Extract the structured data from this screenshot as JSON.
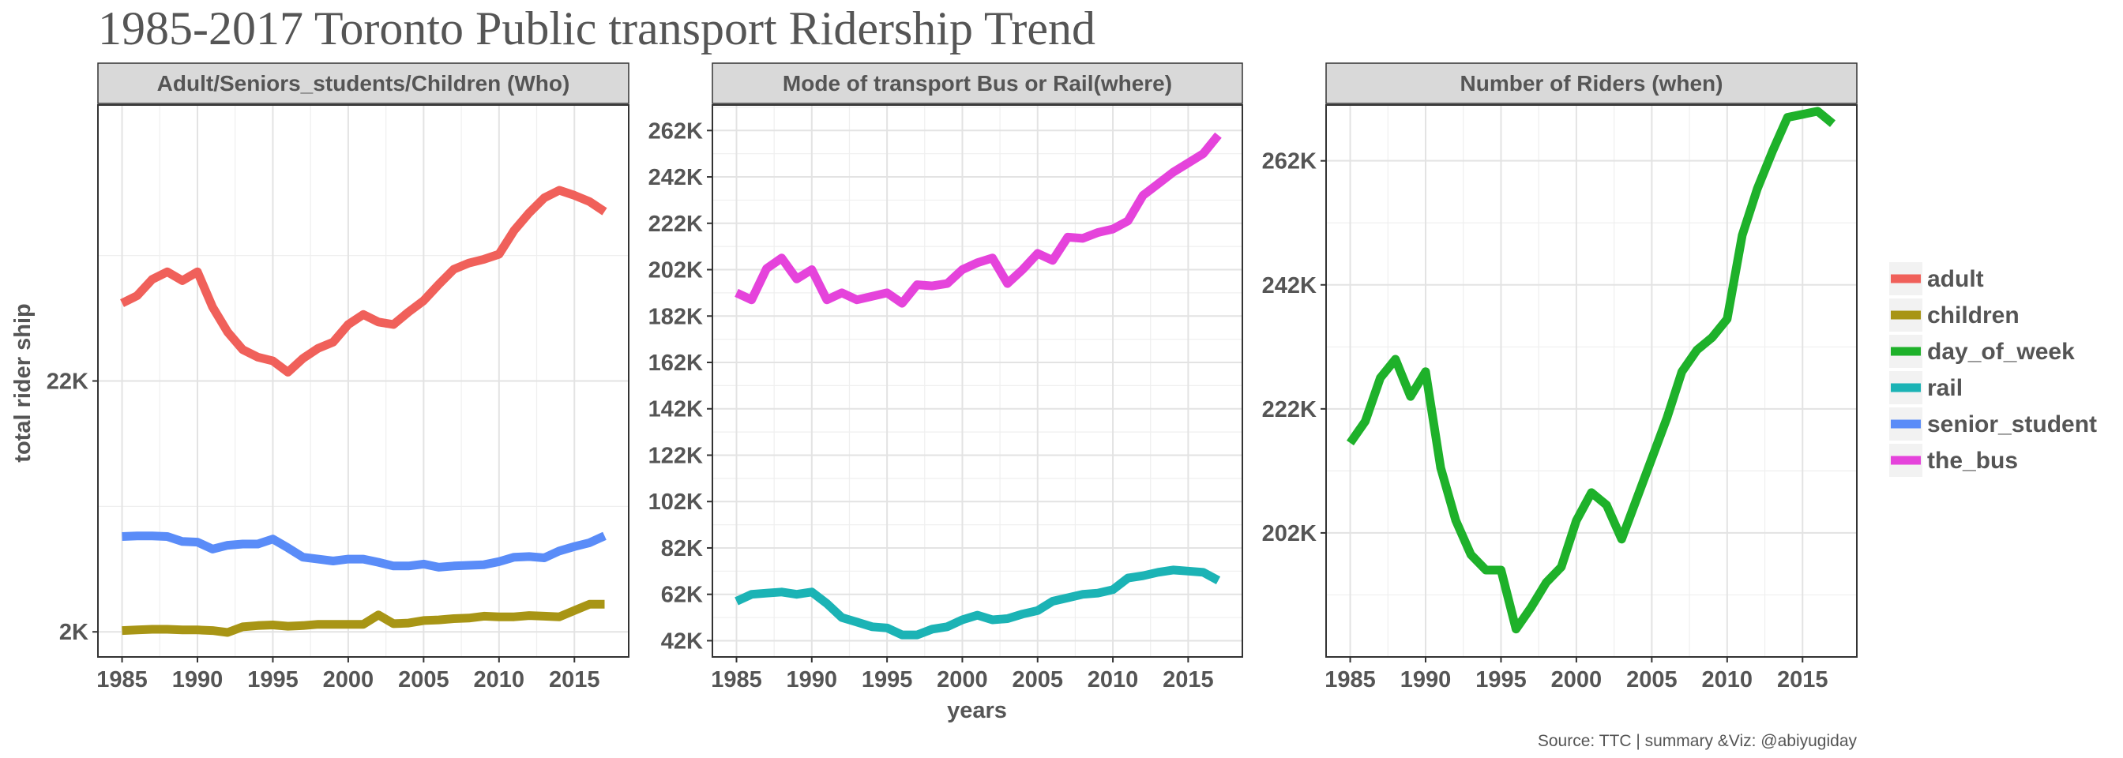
{
  "title": "1985-2017 Toronto Public transport Ridership Trend",
  "caption": "Source: TTC | summary &Viz: @abiyugiday",
  "xlabel": "years",
  "ylabel": "total rider ship",
  "colors": {
    "adult": "#F0605A",
    "children": "#A89515",
    "day_of_week": "#1EB12A",
    "rail": "#1BB3B5",
    "senior_student": "#5A8CF8",
    "the_bus": "#E543DB"
  },
  "legend": [
    "adult",
    "children",
    "day_of_week",
    "rail",
    "senior_student",
    "the_bus"
  ],
  "chart_data": [
    {
      "type": "line",
      "facet_title": "Adult/Seniors_students/Children (Who)",
      "x_ticks": [
        1985,
        1990,
        1995,
        2000,
        2005,
        2010,
        2015
      ],
      "y_ticks": [
        {
          "value": 2000,
          "label": "2K"
        },
        {
          "value": 22000,
          "label": "22K"
        }
      ],
      "ylim": [
        0,
        44000
      ],
      "series": [
        {
          "name": "adult",
          "x": [
            1985,
            1986,
            1987,
            1988,
            1989,
            1990,
            1991,
            1992,
            1993,
            1994,
            1995,
            1996,
            1997,
            1998,
            1999,
            2000,
            2001,
            2002,
            2003,
            2004,
            2005,
            2006,
            2007,
            2008,
            2009,
            2010,
            2011,
            2012,
            2013,
            2014,
            2015,
            2016,
            2017
          ],
          "values": [
            28200,
            28800,
            30100,
            30700,
            30000,
            30700,
            27900,
            25900,
            24500,
            23900,
            23600,
            22700,
            23800,
            24600,
            25100,
            26500,
            27300,
            26700,
            26500,
            27500,
            28400,
            29700,
            30900,
            31400,
            31700,
            32100,
            34000,
            35400,
            36600,
            37200,
            36800,
            36300,
            35500
          ]
        },
        {
          "name": "children",
          "x": [
            1985,
            1986,
            1987,
            1988,
            1989,
            1990,
            1991,
            1992,
            1993,
            1994,
            1995,
            1996,
            1997,
            1998,
            1999,
            2000,
            2001,
            2002,
            2003,
            2004,
            2005,
            2006,
            2007,
            2008,
            2009,
            2010,
            2011,
            2012,
            2013,
            2014,
            2015,
            2016,
            2017
          ],
          "values": [
            2100,
            2150,
            2200,
            2200,
            2150,
            2150,
            2100,
            1950,
            2400,
            2500,
            2550,
            2450,
            2500,
            2600,
            2600,
            2600,
            2600,
            3350,
            2650,
            2700,
            2900,
            2950,
            3050,
            3100,
            3250,
            3200,
            3200,
            3300,
            3250,
            3200,
            3700,
            4200,
            4200
          ]
        },
        {
          "name": "senior_student",
          "x": [
            1985,
            1986,
            1987,
            1988,
            1989,
            1990,
            1991,
            1992,
            1993,
            1994,
            1995,
            1996,
            1997,
            1998,
            1999,
            2000,
            2001,
            2002,
            2003,
            2004,
            2005,
            2006,
            2007,
            2008,
            2009,
            2010,
            2011,
            2012,
            2013,
            2014,
            2015,
            2016,
            2017
          ],
          "values": [
            9600,
            9650,
            9650,
            9600,
            9200,
            9150,
            8600,
            8900,
            9000,
            9000,
            9400,
            8700,
            7950,
            7800,
            7650,
            7800,
            7800,
            7550,
            7250,
            7250,
            7400,
            7150,
            7250,
            7300,
            7350,
            7600,
            7950,
            8000,
            7900,
            8450,
            8800,
            9100,
            9650
          ]
        }
      ]
    },
    {
      "type": "line",
      "facet_title": "Mode of transport Bus or Rail(where)",
      "x_ticks": [
        1985,
        1990,
        1995,
        2000,
        2005,
        2010,
        2015
      ],
      "y_ticks": [
        {
          "value": 42000,
          "label": "42K"
        },
        {
          "value": 62000,
          "label": "62K"
        },
        {
          "value": 82000,
          "label": "82K"
        },
        {
          "value": 102000,
          "label": "102K"
        },
        {
          "value": 122000,
          "label": "122K"
        },
        {
          "value": 142000,
          "label": "142K"
        },
        {
          "value": 162000,
          "label": "162K"
        },
        {
          "value": 182000,
          "label": "182K"
        },
        {
          "value": 202000,
          "label": "202K"
        },
        {
          "value": 222000,
          "label": "222K"
        },
        {
          "value": 242000,
          "label": "242K"
        },
        {
          "value": 262000,
          "label": "262K"
        }
      ],
      "ylim": [
        35000,
        273000
      ],
      "series": [
        {
          "name": "rail",
          "x": [
            1985,
            1986,
            1987,
            1988,
            1989,
            1990,
            1991,
            1992,
            1993,
            1994,
            1995,
            1996,
            1997,
            1998,
            1999,
            2000,
            2001,
            2002,
            2003,
            2004,
            2005,
            2006,
            2007,
            2008,
            2009,
            2010,
            2011,
            2012,
            2013,
            2014,
            2015,
            2016,
            2017
          ],
          "values": [
            59000,
            62000,
            62500,
            63000,
            62000,
            63000,
            58000,
            52000,
            50000,
            48000,
            47500,
            44500,
            44500,
            47000,
            48000,
            51000,
            53000,
            51000,
            51500,
            53500,
            55000,
            59000,
            60500,
            62000,
            62500,
            64000,
            69000,
            70000,
            71500,
            72500,
            72000,
            71500,
            68000
          ]
        },
        {
          "name": "the_bus",
          "x": [
            1985,
            1986,
            1987,
            1988,
            1989,
            1990,
            1991,
            1992,
            1993,
            1994,
            1995,
            1996,
            1997,
            1998,
            1999,
            2000,
            2001,
            2002,
            2003,
            2004,
            2005,
            2006,
            2007,
            2008,
            2009,
            2010,
            2011,
            2012,
            2013,
            2014,
            2015,
            2016,
            2017
          ],
          "values": [
            192000,
            189000,
            202500,
            207000,
            198000,
            202000,
            189000,
            192000,
            189000,
            190500,
            192000,
            187500,
            195500,
            195000,
            196000,
            202000,
            205000,
            207000,
            196000,
            202000,
            209000,
            206000,
            216000,
            215500,
            218000,
            219500,
            223000,
            234000,
            239000,
            244000,
            248000,
            252000,
            260000
          ]
        }
      ]
    },
    {
      "type": "line",
      "facet_title": "Number of Riders (when)",
      "x_ticks": [
        1985,
        1990,
        1995,
        2000,
        2005,
        2010,
        2015
      ],
      "y_ticks": [
        {
          "value": 202000,
          "label": "202K"
        },
        {
          "value": 222000,
          "label": "222K"
        },
        {
          "value": 242000,
          "label": "242K"
        },
        {
          "value": 262000,
          "label": "262K"
        }
      ],
      "ylim": [
        182000,
        271000
      ],
      "series": [
        {
          "name": "day_of_week",
          "x": [
            1985,
            1986,
            1987,
            1988,
            1989,
            1990,
            1991,
            1992,
            1993,
            1994,
            1995,
            1996,
            1997,
            1998,
            1999,
            2000,
            2001,
            2002,
            2003,
            2004,
            2005,
            2006,
            2007,
            2008,
            2009,
            2010,
            2011,
            2012,
            2013,
            2014,
            2015,
            2016,
            2017
          ],
          "values": [
            216500,
            220000,
            227000,
            230000,
            224000,
            228000,
            212500,
            204000,
            198500,
            196000,
            196000,
            186500,
            190000,
            194000,
            196500,
            204000,
            208500,
            206500,
            201000,
            207500,
            214000,
            220500,
            228000,
            231500,
            233500,
            236500,
            250000,
            257500,
            263500,
            269000,
            269500,
            270000,
            268000
          ]
        }
      ]
    }
  ]
}
